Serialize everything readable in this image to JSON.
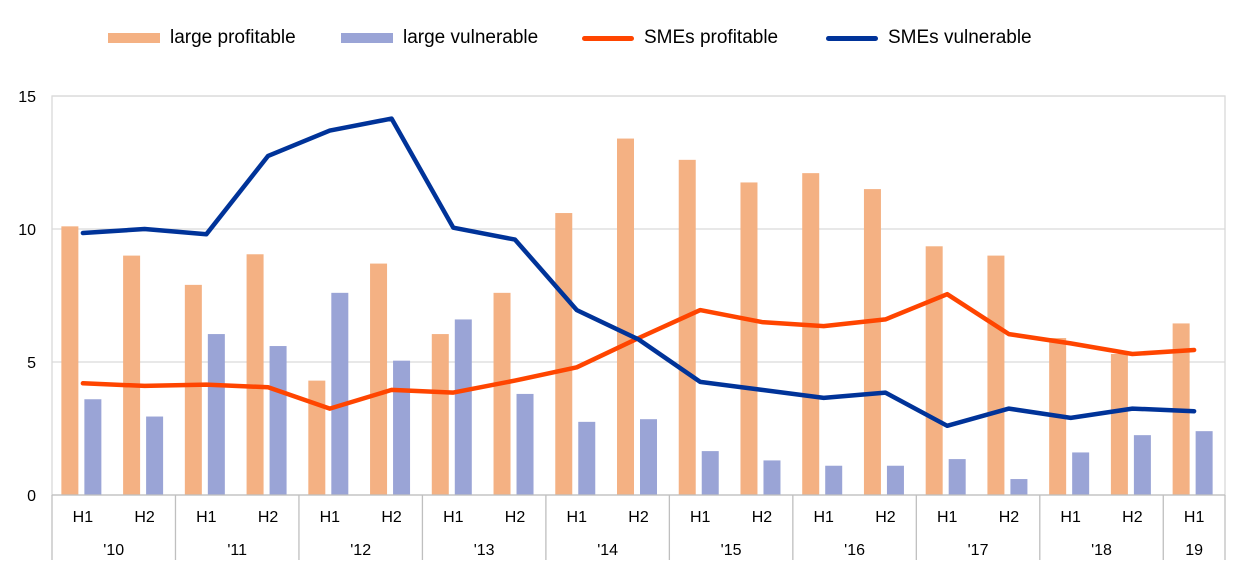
{
  "chart_data": {
    "type": "bar",
    "title": "",
    "xlabel": "",
    "ylabel": "",
    "ylim": [
      0,
      15
    ],
    "yticks": [
      0,
      5,
      10,
      15
    ],
    "grid": true,
    "legend_position": "top",
    "categories": [
      "H1",
      "H2",
      "H1",
      "H2",
      "H1",
      "H2",
      "H1",
      "H2",
      "H1",
      "H2",
      "H1",
      "H2",
      "H1",
      "H2",
      "H1",
      "H2",
      "H1",
      "H2",
      "H1"
    ],
    "year_groups": [
      {
        "label": "'10",
        "count": 2
      },
      {
        "label": "'11",
        "count": 2
      },
      {
        "label": "'12",
        "count": 2
      },
      {
        "label": "'13",
        "count": 2
      },
      {
        "label": "'14",
        "count": 2
      },
      {
        "label": "'15",
        "count": 2
      },
      {
        "label": "'16",
        "count": 2
      },
      {
        "label": "'17",
        "count": 2
      },
      {
        "label": "'18",
        "count": 2
      },
      {
        "label": "19",
        "count": 1
      }
    ],
    "series": [
      {
        "name": "large profitable",
        "kind": "bar",
        "color": "#F4B183",
        "values": [
          10.1,
          9.0,
          7.9,
          9.05,
          4.3,
          8.7,
          6.05,
          7.6,
          10.6,
          13.4,
          12.6,
          11.75,
          12.1,
          11.5,
          9.35,
          9.0,
          5.9,
          5.3,
          6.45
        ]
      },
      {
        "name": "large vulnerable",
        "kind": "bar",
        "color": "#9AA4D6",
        "values": [
          3.6,
          2.95,
          6.05,
          5.6,
          7.6,
          5.05,
          6.6,
          3.8,
          2.75,
          2.85,
          1.65,
          1.3,
          1.1,
          1.1,
          1.35,
          0.6,
          1.6,
          2.25,
          2.4
        ]
      },
      {
        "name": "SMEs profitable",
        "kind": "line",
        "color": "#FF4500",
        "values": [
          4.2,
          4.1,
          4.15,
          4.05,
          3.25,
          3.95,
          3.85,
          4.3,
          4.8,
          5.9,
          6.95,
          6.5,
          6.35,
          6.6,
          7.55,
          6.05,
          5.7,
          5.3,
          5.45
        ]
      },
      {
        "name": "SMEs vulnerable",
        "kind": "line",
        "color": "#003399",
        "values": [
          9.85,
          10.0,
          9.8,
          12.75,
          13.7,
          14.15,
          10.05,
          9.6,
          6.95,
          5.85,
          4.25,
          3.95,
          3.65,
          3.85,
          2.6,
          3.25,
          2.9,
          3.25,
          3.15
        ]
      }
    ]
  }
}
